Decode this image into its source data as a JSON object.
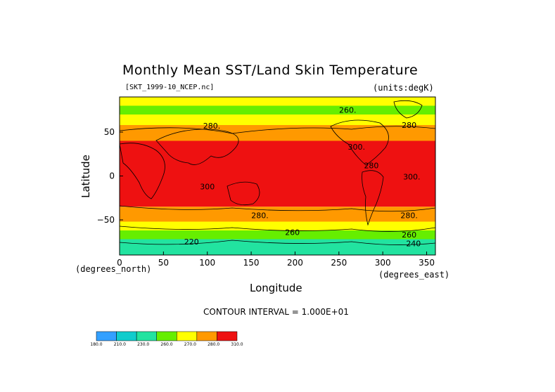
{
  "chart_data": {
    "type": "heatmap",
    "title": "Monthly Mean SST/Land Skin Temperature",
    "subtitle_left": "[SKT_1999-10_NCEP.nc]",
    "subtitle_right": "(units:degK)",
    "xlabel": "Longitude",
    "ylabel": "Latitude",
    "x_units_left": "(degrees_north)",
    "x_units_right": "(degrees_east)",
    "xlim": [
      0,
      360
    ],
    "ylim": [
      -90,
      90
    ],
    "x_ticks": [
      "0",
      "50",
      "100",
      "150",
      "200",
      "250",
      "300",
      "350"
    ],
    "y_ticks": [
      "50",
      "0",
      "−50"
    ],
    "contour_labels": [
      "260.",
      "280.",
      "280",
      "300.",
      "300",
      "300.",
      "280",
      "280.",
      "280.",
      "260",
      "240",
      "220",
      "260"
    ],
    "note": "CONTOUR INTERVAL = 1.000E+01",
    "colorbar": {
      "bounds": [
        "180.0",
        "210.0",
        "230.0",
        "260.0",
        "270.0",
        "280.0",
        "310.0"
      ],
      "colors": [
        "#33a0ff",
        "#10cccc",
        "#22e3a0",
        "#66ee00",
        "#ffff00",
        "#ff9900",
        "#ee1111"
      ]
    },
    "zonal_bands": [
      {
        "lat_top": 90,
        "lat_bottom": 80,
        "class": 4
      },
      {
        "lat_top": 80,
        "lat_bottom": 70,
        "class": 3
      },
      {
        "lat_top": 70,
        "lat_bottom": 58,
        "class": 4
      },
      {
        "lat_top": 58,
        "lat_bottom": 40,
        "class": 5
      },
      {
        "lat_top": 40,
        "lat_bottom": -35,
        "class": 6
      },
      {
        "lat_top": -35,
        "lat_bottom": -52,
        "class": 5
      },
      {
        "lat_top": -52,
        "lat_bottom": -62,
        "class": 4
      },
      {
        "lat_top": -62,
        "lat_bottom": -72,
        "class": 3
      },
      {
        "lat_top": -72,
        "lat_bottom": -90,
        "class": 2
      }
    ]
  }
}
